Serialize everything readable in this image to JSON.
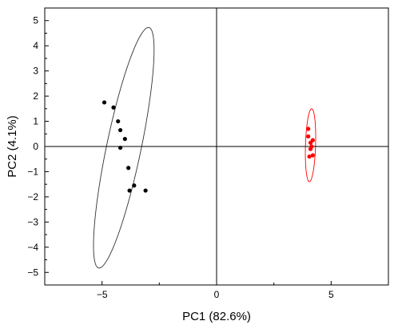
{
  "chart_data": {
    "type": "scatter",
    "title": "",
    "xlabel": "PC1 (82.6%)",
    "ylabel": "PC2 (4.1%)",
    "xlim": [
      -7.5,
      7.5
    ],
    "ylim": [
      -5.5,
      5.5
    ],
    "xticks": [
      -5,
      0,
      5
    ],
    "yticks": [
      -5,
      -4,
      -3,
      -2,
      -1,
      0,
      1,
      2,
      3,
      4,
      5
    ],
    "grid": false,
    "zero_lines": true,
    "series": [
      {
        "color": "#000000",
        "points": [
          {
            "x": -4.9,
            "y": 1.75
          },
          {
            "x": -4.5,
            "y": 1.55
          },
          {
            "x": -4.3,
            "y": 1.0
          },
          {
            "x": -4.2,
            "y": 0.65
          },
          {
            "x": -4.0,
            "y": 0.3
          },
          {
            "x": -4.2,
            "y": -0.05
          },
          {
            "x": -3.85,
            "y": -0.85
          },
          {
            "x": -3.6,
            "y": -1.55
          },
          {
            "x": -3.8,
            "y": -1.75
          },
          {
            "x": -3.1,
            "y": -1.75
          }
        ],
        "ellipse": {
          "center": [
            -4.05,
            -0.05
          ],
          "semi_major": 4.9,
          "semi_minor": 0.75,
          "angle_deg": 77
        }
      },
      {
        "color": "#ff0000",
        "points": [
          {
            "x": 4.0,
            "y": 0.7
          },
          {
            "x": 4.0,
            "y": 0.4
          },
          {
            "x": 4.2,
            "y": 0.25
          },
          {
            "x": 4.1,
            "y": 0.15
          },
          {
            "x": 4.15,
            "y": 0.0
          },
          {
            "x": 4.1,
            "y": -0.1
          },
          {
            "x": 4.2,
            "y": -0.35
          },
          {
            "x": 4.05,
            "y": -0.4
          }
        ],
        "ellipse": {
          "center": [
            4.1,
            0.05
          ],
          "semi_major": 1.45,
          "semi_minor": 0.22,
          "angle_deg": 88
        }
      }
    ]
  }
}
